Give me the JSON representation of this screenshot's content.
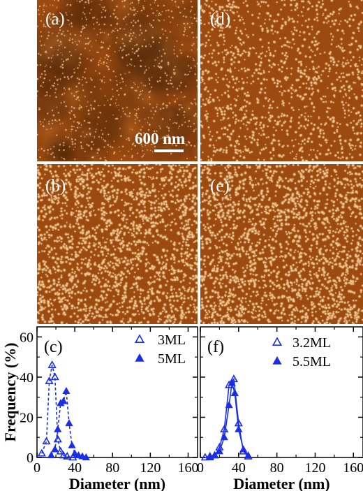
{
  "colors": {
    "afm_background": "#9c4a10",
    "afm_particle": "#f2d8a0",
    "plot_series": "#1a2ee6"
  },
  "images": [
    {
      "id": "a",
      "label": "(a)",
      "density": "low"
    },
    {
      "id": "d",
      "label": "(d)",
      "density": "medium"
    },
    {
      "id": "b",
      "label": "(b)",
      "density": "high"
    },
    {
      "id": "e",
      "label": "(e)",
      "density": "high"
    }
  ],
  "scale_bar": {
    "label": "600 nm"
  },
  "chart_data": [
    {
      "type": "line",
      "panel_label": "(c)",
      "xlabel": "Diameter (nm)",
      "ylabel": "Frequency (%)",
      "xlim": [
        0,
        170
      ],
      "ylim": [
        0,
        65
      ],
      "xticks": [
        0,
        40,
        80,
        120,
        160
      ],
      "yticks": [
        0,
        20,
        40,
        60
      ],
      "legend_position": "top-right",
      "series": [
        {
          "name": "3ML",
          "marker": "open-triangle",
          "line": "dashed",
          "x": [
            5,
            10,
            13,
            16,
            19,
            22,
            25,
            28,
            32,
            38
          ],
          "y": [
            2,
            8,
            38,
            46,
            40,
            9,
            3,
            1,
            0.5,
            0
          ]
        },
        {
          "name": "5ML",
          "marker": "filled-triangle",
          "line": "dashed",
          "x": [
            15,
            19,
            22,
            25,
            28,
            31,
            34,
            37,
            40,
            44,
            48,
            52
          ],
          "y": [
            1,
            4,
            14,
            27,
            28,
            33,
            17,
            6,
            2,
            1,
            0.5,
            0
          ]
        }
      ]
    },
    {
      "type": "line",
      "panel_label": "(f)",
      "xlabel": "Diameter (nm)",
      "ylabel": "",
      "xlim": [
        0,
        170
      ],
      "ylim": [
        0,
        65
      ],
      "xticks": [
        0,
        40,
        80,
        120,
        160
      ],
      "yticks": [
        0,
        20,
        40,
        60
      ],
      "legend_position": "top-right",
      "series": [
        {
          "name": "3.2ML",
          "marker": "open-triangle",
          "line": "solid",
          "x": [
            5,
            10,
            15,
            20,
            25,
            30,
            35,
            40,
            45,
            50
          ],
          "y": [
            0,
            0.5,
            1,
            5,
            14,
            36,
            39,
            17,
            3,
            0.5
          ]
        },
        {
          "name": "5.5ML",
          "marker": "filled-triangle",
          "line": "solid",
          "x": [
            10,
            15,
            20,
            25,
            30,
            33,
            36,
            40,
            45,
            50
          ],
          "y": [
            0,
            1,
            3,
            10,
            26,
            37,
            32,
            14,
            4,
            1
          ]
        }
      ]
    }
  ]
}
